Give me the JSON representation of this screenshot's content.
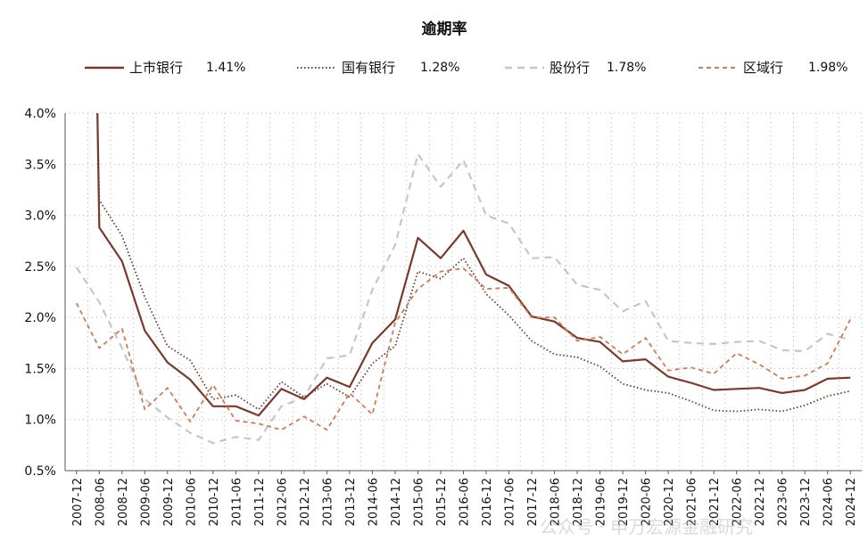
{
  "chart_data": {
    "type": "line",
    "title": "逾期率",
    "ylim": [
      0.5,
      4.0
    ],
    "yticks": [
      0.5,
      1.0,
      1.5,
      2.0,
      2.5,
      3.0,
      3.5,
      4.0
    ],
    "ytick_labels": [
      "0.5%",
      "1.0%",
      "1.5%",
      "2.0%",
      "2.5%",
      "3.0%",
      "3.5%",
      "4.0%"
    ],
    "categories": [
      "2007-12",
      "2008-06",
      "2008-12",
      "2009-06",
      "2009-12",
      "2010-06",
      "2010-12",
      "2011-06",
      "2011-12",
      "2012-06",
      "2012-12",
      "2013-06",
      "2013-12",
      "2014-06",
      "2014-12",
      "2015-06",
      "2015-12",
      "2016-06",
      "2016-12",
      "2017-06",
      "2017-12",
      "2018-06",
      "2018-12",
      "2019-06",
      "2019-12",
      "2020-06",
      "2020-12",
      "2021-06",
      "2021-12",
      "2022-06",
      "2022-12",
      "2023-06",
      "2023-12",
      "2024-06",
      "2024-12"
    ],
    "grid": true,
    "legend_position": "top",
    "series": [
      {
        "name": "上市银行",
        "latest": "1.41%",
        "color": "#7a3a2a",
        "style": "solid",
        "values": [
          null,
          2.88,
          2.55,
          1.87,
          1.56,
          1.39,
          1.13,
          1.13,
          1.04,
          1.3,
          1.2,
          1.41,
          1.32,
          1.75,
          1.98,
          2.78,
          2.58,
          2.85,
          2.42,
          2.31,
          2.01,
          1.96,
          1.8,
          1.76,
          1.57,
          1.59,
          1.42,
          1.36,
          1.29,
          1.3,
          1.31,
          1.26,
          1.29,
          1.4,
          1.41
        ]
      },
      {
        "name": "国有银行",
        "latest": "1.28%",
        "color": "#6b3a30",
        "style": "dotted",
        "values": [
          null,
          3.15,
          2.8,
          2.2,
          1.72,
          1.58,
          1.2,
          1.24,
          1.1,
          1.37,
          1.22,
          1.35,
          1.22,
          1.55,
          1.72,
          2.45,
          2.38,
          2.58,
          2.23,
          2.02,
          1.77,
          1.64,
          1.61,
          1.52,
          1.35,
          1.29,
          1.26,
          1.18,
          1.09,
          1.08,
          1.1,
          1.08,
          1.14,
          1.23,
          1.28
        ]
      },
      {
        "name": "股份行",
        "latest": "1.78%",
        "color": "#c6c6c6",
        "style": "dashed",
        "values": [
          2.49,
          2.15,
          1.7,
          1.2,
          1.02,
          0.87,
          0.77,
          0.83,
          0.8,
          1.13,
          1.22,
          1.6,
          1.63,
          2.27,
          2.71,
          3.6,
          3.28,
          3.54,
          3.0,
          2.92,
          2.58,
          2.59,
          2.32,
          2.27,
          2.06,
          2.16,
          1.77,
          1.75,
          1.74,
          1.76,
          1.77,
          1.68,
          1.67,
          1.84,
          1.78
        ]
      },
      {
        "name": "区域行",
        "latest": "1.98%",
        "color": "#d07a55",
        "style": "dashed",
        "values": [
          2.14,
          1.7,
          1.89,
          1.1,
          1.31,
          0.98,
          1.34,
          0.99,
          0.96,
          0.9,
          1.03,
          0.9,
          1.26,
          1.05,
          1.95,
          2.28,
          2.45,
          2.48,
          2.28,
          2.29,
          2.0,
          2.0,
          1.77,
          1.81,
          1.64,
          1.8,
          1.48,
          1.51,
          1.45,
          1.65,
          1.54,
          1.4,
          1.43,
          1.55,
          1.98
        ]
      }
    ]
  },
  "watermark": {
    "text": "公众号 · 申万宏源金融研究"
  }
}
